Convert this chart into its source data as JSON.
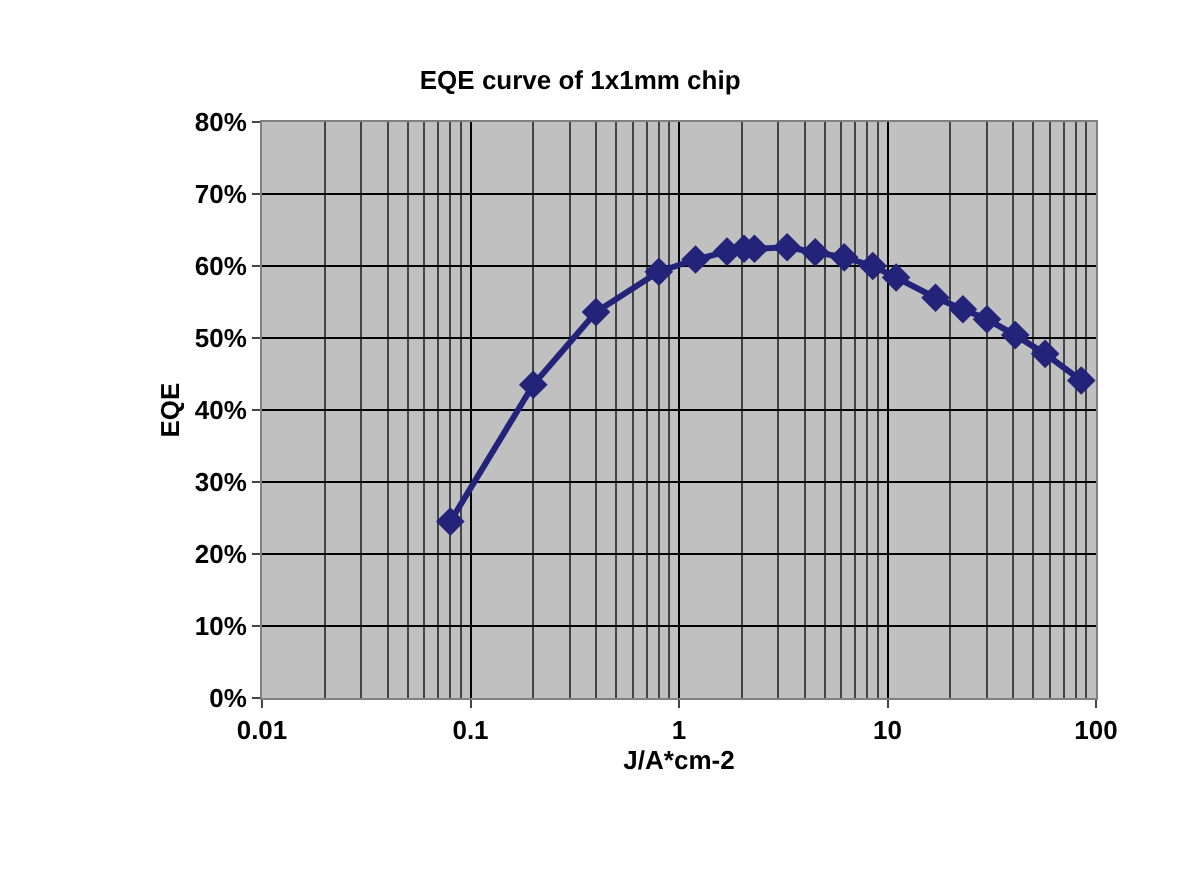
{
  "chart_data": {
    "type": "line",
    "title": "EQE curve of 1x1mm chip",
    "xlabel": "J/A*cm-2",
    "ylabel": "EQE",
    "log": "x",
    "x": [
      0.08,
      0.2,
      0.4,
      0.8,
      1.2,
      1.7,
      2.05,
      2.3,
      3.3,
      4.5,
      6.2,
      8.5,
      11,
      17,
      23,
      30,
      41,
      57,
      85
    ],
    "series": [
      {
        "color": "#23237a",
        "values": [
          24.5,
          43.5,
          53.6,
          59.2,
          60.9,
          62,
          62.4,
          62.4,
          62.6,
          61.9,
          61.2,
          60,
          58.4,
          55.6,
          54,
          52.6,
          50.4,
          47.8,
          44.1
        ]
      }
    ],
    "xlim": [
      0.01,
      100
    ],
    "xticks": [
      0.01,
      0.1,
      1,
      10,
      100
    ],
    "ylim": [
      0,
      80
    ],
    "yticks": [
      {
        "value": 0,
        "label": "0%"
      },
      {
        "value": 10,
        "label": "10%"
      },
      {
        "value": 20,
        "label": "20%"
      },
      {
        "value": 30,
        "label": "30%"
      },
      {
        "value": 40,
        "label": "40%"
      },
      {
        "value": 50,
        "label": "50%"
      },
      {
        "value": 60,
        "label": "60%"
      },
      {
        "value": 70,
        "label": "70%"
      },
      {
        "value": 80,
        "label": "80%"
      }
    ],
    "grid": true,
    "marker": "diamond",
    "line_style": "solid"
  }
}
